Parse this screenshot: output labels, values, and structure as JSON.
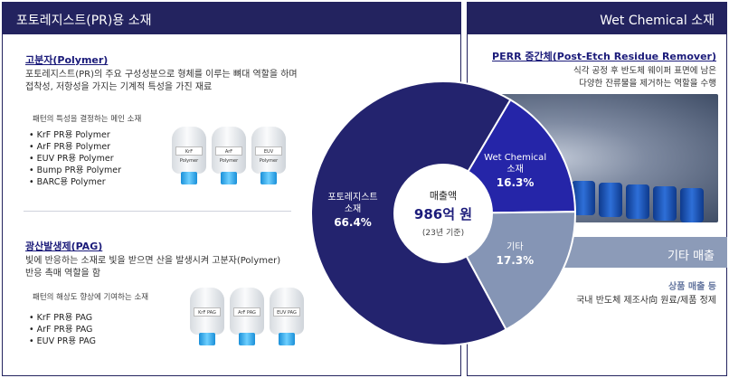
{
  "left_panel": {
    "header": "포토레지스트(PR)용 소재",
    "polymer": {
      "title": "고분자(Polymer)",
      "desc_line1": "포토레지스트(PR)의 주요 구성성분으로 형체를 이루는 뼈대 역할을 하며",
      "desc_line2": "접착성, 저항성을 가지는 기계적 특성을 가진 재료",
      "sub": "패턴의 특성을 결정하는 메인 소재",
      "items": [
        "KrF PR용 Polymer",
        "ArF PR용 Polymer",
        "EUV PR용 Polymer",
        "Bump PR용 Polymer",
        "BARC용 Polymer"
      ],
      "bottle_labels": [
        "KrF Polymer",
        "ArF Polymer",
        "EUV Polymer"
      ]
    },
    "pag": {
      "title": "광산발생제(PAG)",
      "desc_line1": "빛에 반응하는 소재로 빛을 받으면 산을 발생시켜 고분자(Polymer)",
      "desc_line2": "반응 촉매 역할을 함",
      "sub": "패턴의 해상도 향상에 기여하는 소재",
      "items": [
        "KrF PR용 PAG",
        "ArF PR용 PAG",
        "EUV PR용 PAG"
      ],
      "bottle_labels": [
        "KrF PAG",
        "ArF PAG",
        "EUV PAG"
      ]
    }
  },
  "right_top": {
    "header": "Wet Chemical 소재",
    "perr_title": "PERR 중간체(Post-Etch Residue Remover)",
    "perr_desc_line1": "식각 공정 후 반도체 웨이퍼 표면에 남은",
    "perr_desc_line2": "다양한 잔류물을 제거하는 역할을 수행"
  },
  "right_bottom": {
    "header": "기타 매출",
    "sub_title": "상품 매출 등",
    "desc": "국내 반도체 제조사向 원료/제품 정제"
  },
  "chart_data": {
    "type": "pie",
    "center_title": "매출액",
    "center_value": "986억 원",
    "center_note": "(23년 기준)",
    "slices": [
      {
        "name_line1": "포토레지스트",
        "name_line2": "소재",
        "label": "66.4%",
        "value": 66.4,
        "color": "#23236e"
      },
      {
        "name_line1": "Wet Chemical",
        "name_line2": "소재",
        "label": "16.3%",
        "value": 16.3,
        "color": "#2525a8"
      },
      {
        "name_line1": "기타",
        "name_line2": "",
        "label": "17.3%",
        "value": 17.3,
        "color": "#8595b5"
      }
    ]
  }
}
